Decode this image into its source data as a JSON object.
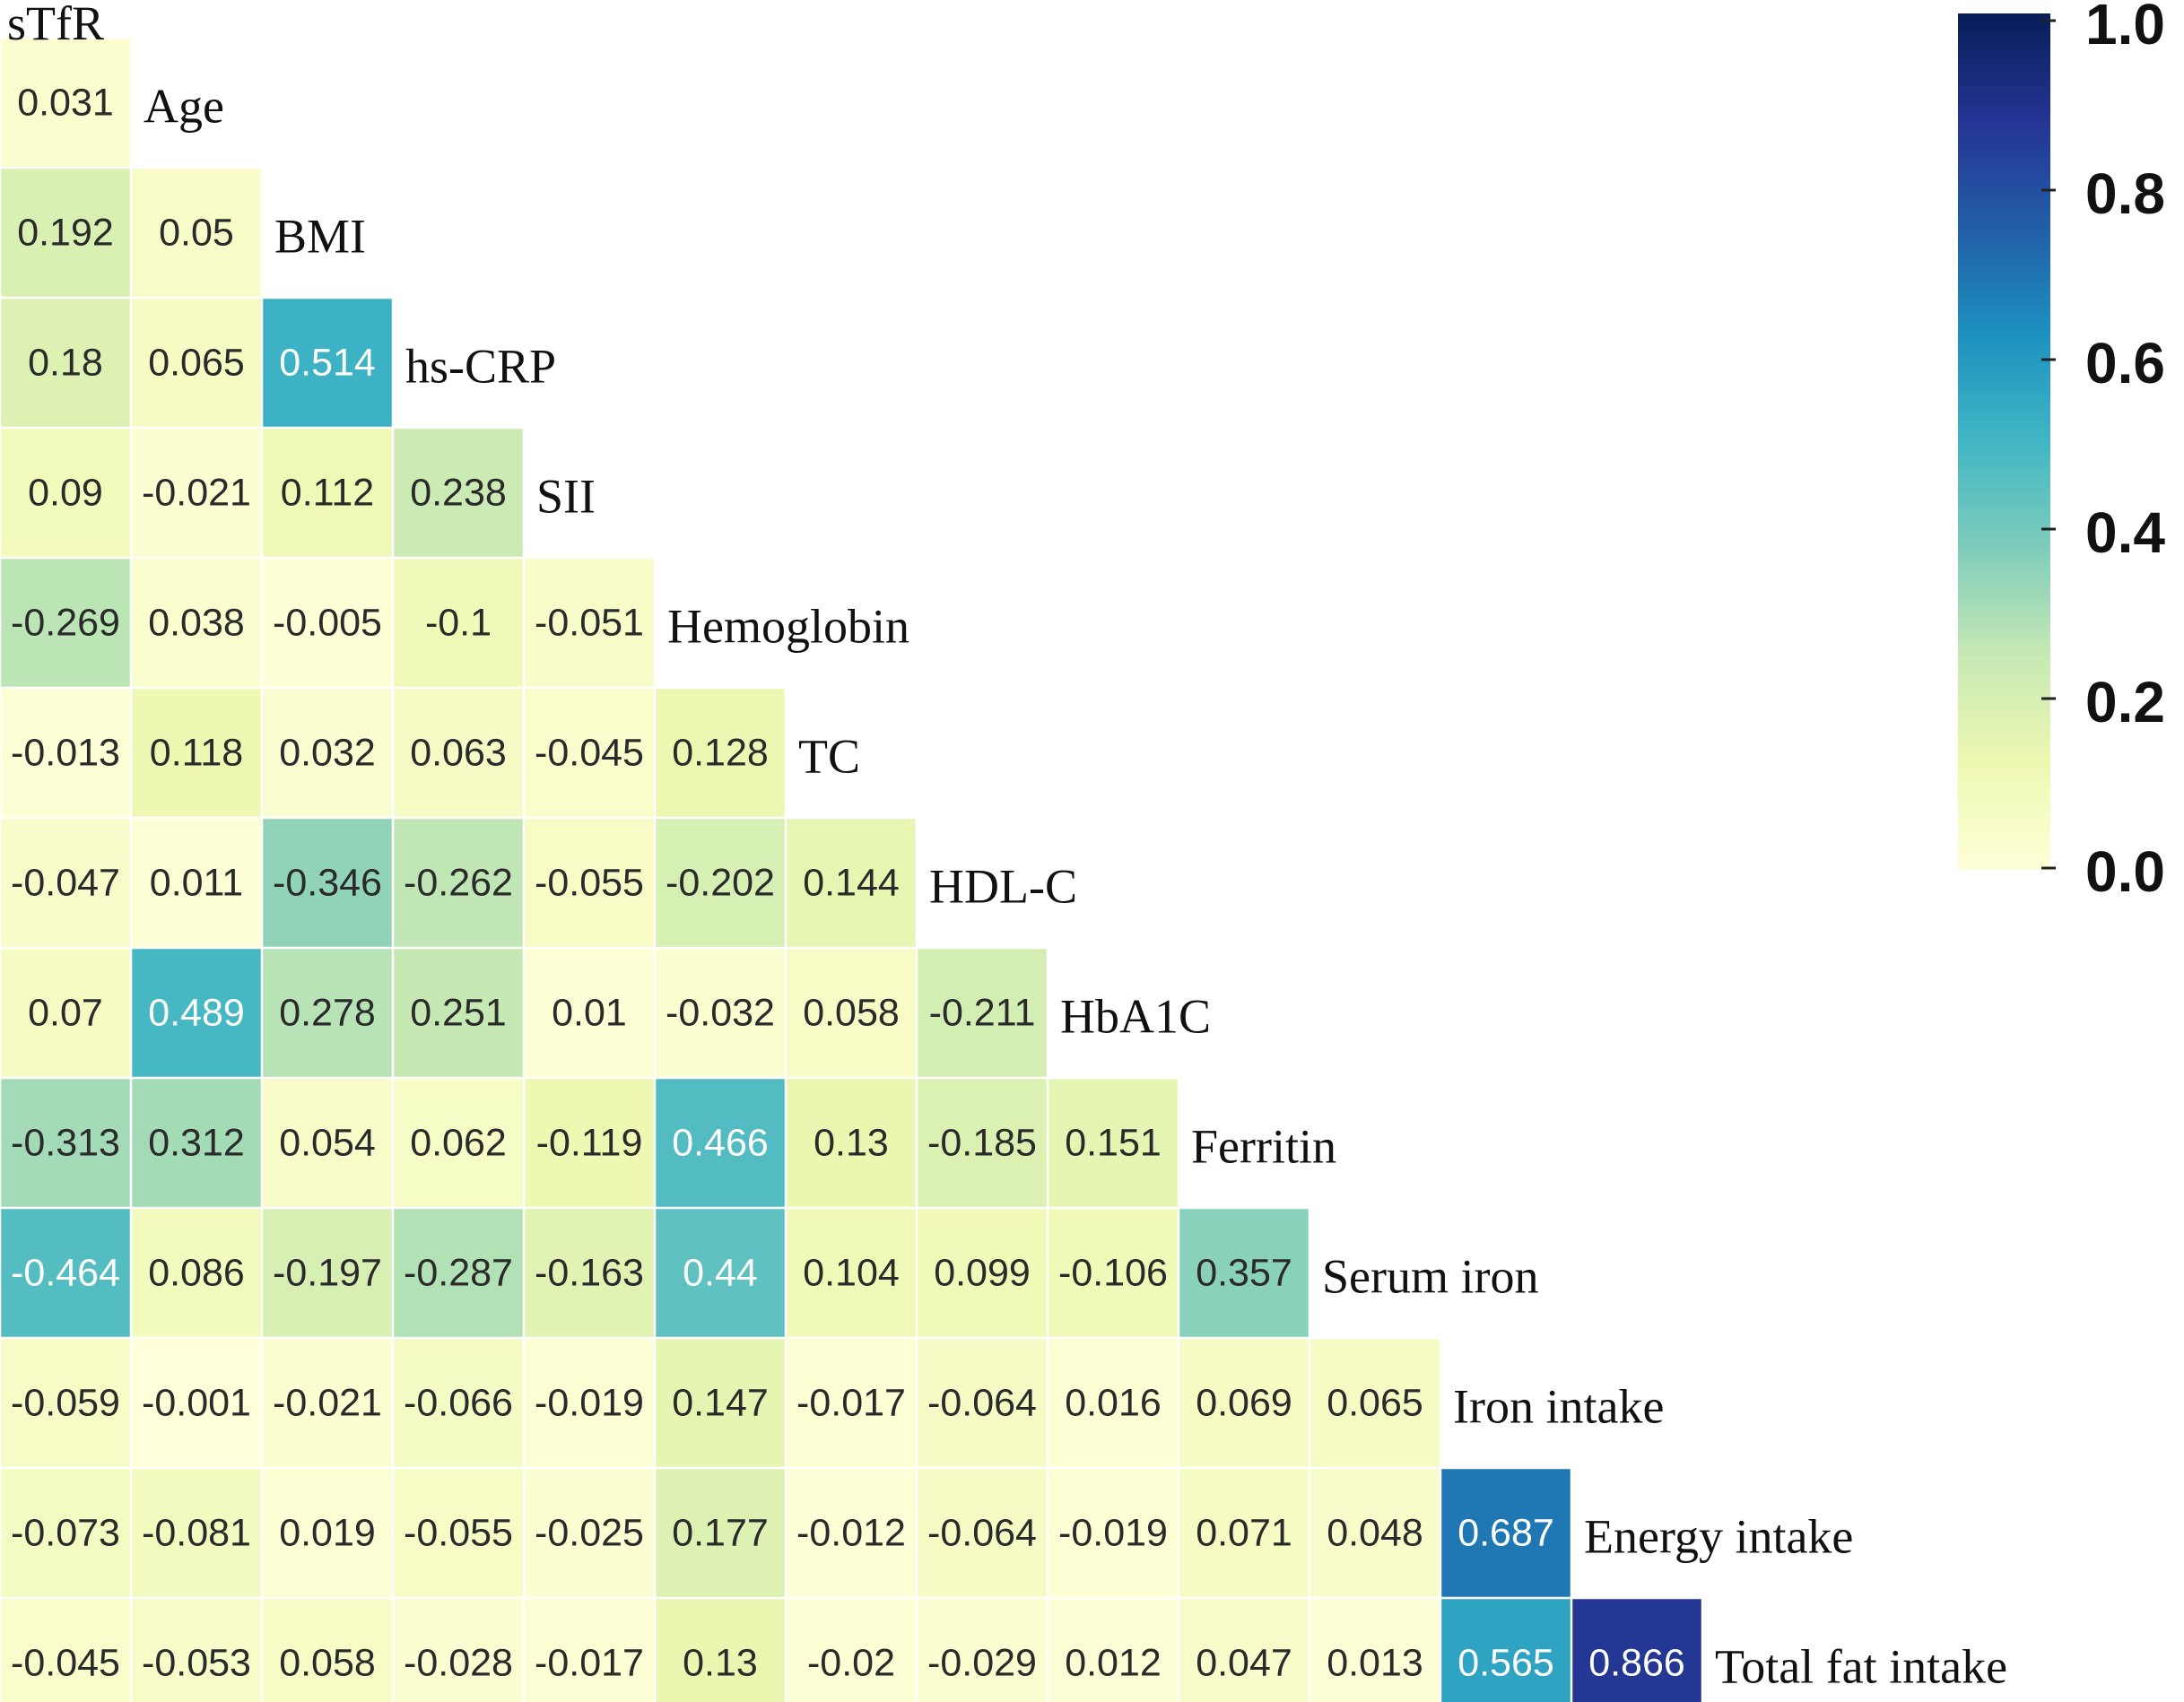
{
  "chart_data": {
    "type": "heatmap",
    "variables": [
      "sTfR",
      "Age",
      "BMI",
      "hs-CRP",
      "SII",
      "Hemoglobin",
      "TC",
      "HDL-C",
      "HbA1C",
      "Ferritin",
      "Serum iron",
      "Iron intake",
      "Energy intake",
      "Total fat intake"
    ],
    "matrix": [
      [],
      [
        "0.031"
      ],
      [
        "0.192",
        "0.05"
      ],
      [
        "0.18",
        "0.065",
        "0.514"
      ],
      [
        "0.09",
        "-0.021",
        "0.112",
        "0.238"
      ],
      [
        "-0.269",
        "0.038",
        "-0.005",
        "-0.1",
        "-0.051"
      ],
      [
        "-0.013",
        "0.118",
        "0.032",
        "0.063",
        "-0.045",
        "0.128"
      ],
      [
        "-0.047",
        "0.011",
        "-0.346",
        "-0.262",
        "-0.055",
        "-0.202",
        "0.144"
      ],
      [
        "0.07",
        "0.489",
        "0.278",
        "0.251",
        "0.01",
        "-0.032",
        "0.058",
        "-0.211"
      ],
      [
        "-0.313",
        "0.312",
        "0.054",
        "0.062",
        "-0.119",
        "0.466",
        "0.13",
        "-0.185",
        "0.151"
      ],
      [
        "-0.464",
        "0.086",
        "-0.197",
        "-0.287",
        "-0.163",
        "0.44",
        "0.104",
        "0.099",
        "-0.106",
        "0.357"
      ],
      [
        "-0.059",
        "-0.001",
        "-0.021",
        "-0.066",
        "-0.019",
        "0.147",
        "-0.017",
        "-0.064",
        "0.016",
        "0.069",
        "0.065"
      ],
      [
        "-0.073",
        "-0.081",
        "0.019",
        "-0.055",
        "-0.025",
        "0.177",
        "-0.012",
        "-0.064",
        "-0.019",
        "0.071",
        "0.048",
        "0.687"
      ],
      [
        "-0.045",
        "-0.053",
        "0.058",
        "-0.028",
        "-0.017",
        "0.13",
        "-0.02",
        "-0.029",
        "0.012",
        "0.047",
        "0.013",
        "0.565",
        "0.866"
      ]
    ],
    "color_scale": {
      "range": [
        0.0,
        1.0
      ],
      "ticks": [
        "0.0",
        "0.2",
        "0.4",
        "0.6",
        "0.8",
        "1.0"
      ],
      "colors": [
        "#ffffd9",
        "#edf8b1",
        "#c7e9b4",
        "#7fcdbb",
        "#41b6c4",
        "#1d91c0",
        "#225ea8",
        "#253494",
        "#081d58"
      ]
    },
    "legend": "colorbar-right",
    "grid": true
  }
}
